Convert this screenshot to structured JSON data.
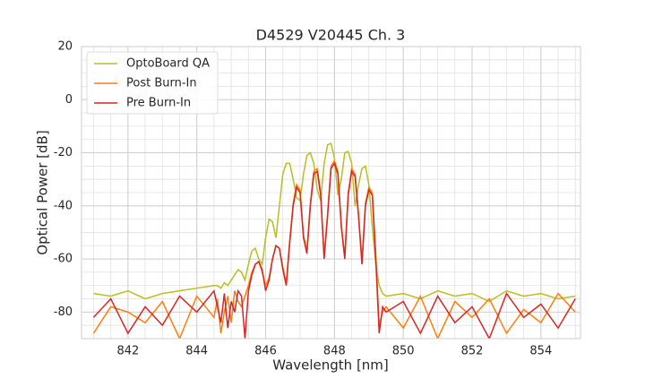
{
  "chart_data": {
    "type": "line",
    "title": "D4529 V20445 Ch. 3",
    "xlabel": "Wavelength [nm]",
    "ylabel": "Optical Power [dB]",
    "x": [
      841,
      841.5,
      842,
      842.5,
      843,
      843.5,
      844,
      844.5,
      844.6,
      844.7,
      844.8,
      844.9,
      845.0,
      845.1,
      845.2,
      845.3,
      845.4,
      845.5,
      845.6,
      845.7,
      845.8,
      845.9,
      846.0,
      846.1,
      846.2,
      846.3,
      846.4,
      846.5,
      846.6,
      846.7,
      846.8,
      846.9,
      847.0,
      847.1,
      847.2,
      847.3,
      847.4,
      847.5,
      847.6,
      847.7,
      847.8,
      847.9,
      848.0,
      848.1,
      848.2,
      848.3,
      848.4,
      848.5,
      848.6,
      848.7,
      848.8,
      848.9,
      849.0,
      849.1,
      849.2,
      849.3,
      849.4,
      849.5,
      850,
      850.5,
      851,
      851.5,
      852,
      852.5,
      853,
      853.5,
      854,
      854.5,
      855
    ],
    "series": [
      {
        "name": "OptoBoard QA",
        "color": "#bcbd22",
        "values": [
          -73,
          -74,
          -72,
          -75,
          -73,
          -72,
          -71,
          -70,
          -70,
          -71,
          -69,
          -70,
          -68,
          -66,
          -64,
          -65,
          -68,
          -62,
          -57,
          -56,
          -60,
          -62,
          -52,
          -45,
          -46,
          -52,
          -40,
          -28,
          -24,
          -24,
          -30,
          -37,
          -38,
          -28,
          -21,
          -20,
          -24,
          -34,
          -38,
          -24,
          -17,
          -16.5,
          -22,
          -36,
          -30,
          -20,
          -19.5,
          -24,
          -40,
          -32,
          -26,
          -25,
          -32,
          -48,
          -62,
          -70,
          -73,
          -74,
          -73,
          -75,
          -72,
          -74,
          -73,
          -76,
          -72,
          -74,
          -73,
          -75,
          -74
        ]
      },
      {
        "name": "Post Burn-In",
        "color": "#ff7f0e",
        "values": [
          -88,
          -78,
          -80,
          -84,
          -76,
          -90,
          -74,
          -82,
          -75,
          -88,
          -80,
          -74,
          -84,
          -72,
          -76,
          -78,
          -74,
          -70,
          -65,
          -62,
          -61,
          -65,
          -70,
          -67,
          -60,
          -55,
          -56,
          -63,
          -69,
          -53,
          -39,
          -32,
          -34,
          -51,
          -57,
          -39,
          -27,
          -26,
          -35,
          -59,
          -43,
          -25,
          -23,
          -27,
          -47,
          -59,
          -35,
          -26,
          -28,
          -43,
          -61,
          -39,
          -33,
          -35,
          -58,
          -85,
          -80,
          -78,
          -86,
          -74,
          -90,
          -76,
          -82,
          -75,
          -88,
          -79,
          -84,
          -73,
          -80
        ]
      },
      {
        "name": "Pre Burn-In",
        "color": "#d62728",
        "values": [
          -82,
          -75,
          -88,
          -78,
          -85,
          -74,
          -80,
          -72,
          -78,
          -84,
          -73,
          -86,
          -76,
          -80,
          -72,
          -74,
          -90,
          -72,
          -66,
          -62,
          -61,
          -64,
          -72,
          -68,
          -60,
          -55,
          -56,
          -64,
          -70,
          -54,
          -40,
          -33,
          -35,
          -52,
          -58,
          -40,
          -28,
          -27,
          -36,
          -60,
          -44,
          -26,
          -24,
          -28,
          -48,
          -60,
          -36,
          -27,
          -29,
          -44,
          -62,
          -40,
          -34,
          -36,
          -60,
          -88,
          -78,
          -80,
          -76,
          -88,
          -74,
          -84,
          -78,
          -90,
          -73,
          -82,
          -77,
          -86,
          -75
        ]
      }
    ],
    "xlim": [
      840.65,
      855.15
    ],
    "ylim": [
      -90,
      20
    ],
    "xticks": [
      842,
      844,
      846,
      848,
      850,
      852,
      854
    ],
    "yticks": [
      -80,
      -60,
      -40,
      -20,
      0,
      20
    ],
    "grid": true,
    "minor_grid": {
      "x": 0.5,
      "y": 5
    },
    "legend": "upper left"
  }
}
